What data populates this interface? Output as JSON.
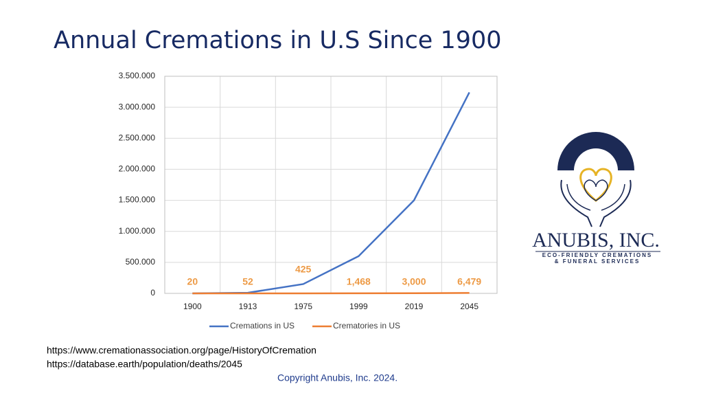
{
  "chart_data": {
    "type": "line",
    "title": "Annual Cremations in U.S Since 1900",
    "categories": [
      "1900",
      "1913",
      "1975",
      "1999",
      "2019",
      "2045"
    ],
    "series": [
      {
        "name": "Cremations in US",
        "color": "#4472c4",
        "values": [
          0,
          10000,
          150000,
          600000,
          1500000,
          3240000
        ]
      },
      {
        "name": "Crematories in US",
        "color": "#ed7d31",
        "values": [
          20,
          52,
          425,
          1468,
          3000,
          6479
        ],
        "value_labels": [
          "20",
          "52",
          "425",
          "1,468",
          "3,000",
          "6,479"
        ]
      }
    ],
    "ylim": [
      0,
      3500000
    ],
    "yticks": [
      0,
      {
        "value": 500000,
        "label": "500.000"
      },
      {
        "value": 1000000,
        "label": "1.000.000"
      },
      {
        "value": 1500000,
        "label": "1.500.000"
      },
      {
        "value": 2000000,
        "label": "2.000.000"
      },
      {
        "value": 2500000,
        "label": "2.500.000"
      },
      {
        "value": 3000000,
        "label": "3.000.000"
      },
      {
        "value": 3500000,
        "label": "3.500.000"
      }
    ],
    "grid": true,
    "legend": "bottom"
  },
  "sources": [
    "https://www.cremationassociation.org/page/HistoryOfCremation",
    "https://database.earth/population/deaths/2045"
  ],
  "copyright": "Copyright Anubis, Inc.  2024.",
  "logo": {
    "name": "ANUBIS, INC.",
    "tagline": [
      "ECO-FRIENDLY CREMATIONS",
      "& FUNERAL SERVICES"
    ]
  }
}
